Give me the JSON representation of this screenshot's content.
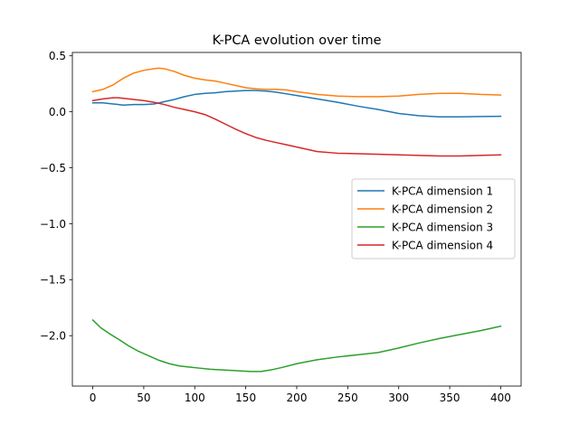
{
  "chart_data": {
    "type": "line",
    "title": "K-PCA evolution over time",
    "xlabel": "",
    "ylabel": "",
    "xlim": [
      -20,
      420
    ],
    "ylim": [
      -2.45,
      0.53
    ],
    "xticks": [
      0,
      50,
      100,
      150,
      200,
      250,
      300,
      350,
      400
    ],
    "yticks": [
      0.5,
      0.0,
      -0.5,
      -1.0,
      -1.5,
      -2.0
    ],
    "ytick_labels": [
      "0.5",
      "0.0",
      "−0.5",
      "−1.0",
      "−1.5",
      "−2.0"
    ],
    "grid": false,
    "legend_position": "center-right",
    "series": [
      {
        "name": "K-PCA dimension 1",
        "color": "#1f77b4",
        "x": [
          0,
          10,
          20,
          30,
          40,
          50,
          60,
          70,
          80,
          90,
          100,
          110,
          120,
          130,
          140,
          150,
          160,
          170,
          180,
          190,
          200,
          220,
          240,
          260,
          280,
          300,
          320,
          340,
          360,
          380,
          400
        ],
        "y": [
          0.08,
          0.08,
          0.07,
          0.06,
          0.065,
          0.065,
          0.07,
          0.09,
          0.11,
          0.135,
          0.155,
          0.165,
          0.17,
          0.18,
          0.185,
          0.19,
          0.19,
          0.185,
          0.175,
          0.16,
          0.145,
          0.115,
          0.085,
          0.05,
          0.02,
          -0.015,
          -0.035,
          -0.045,
          -0.045,
          -0.042,
          -0.04
        ]
      },
      {
        "name": "K-PCA dimension 2",
        "color": "#ff7f0e",
        "x": [
          0,
          10,
          20,
          30,
          40,
          50,
          60,
          65,
          70,
          80,
          90,
          100,
          110,
          120,
          130,
          140,
          150,
          160,
          170,
          180,
          190,
          200,
          220,
          240,
          260,
          280,
          300,
          320,
          340,
          360,
          380,
          400
        ],
        "y": [
          0.18,
          0.2,
          0.24,
          0.3,
          0.345,
          0.37,
          0.385,
          0.39,
          0.385,
          0.36,
          0.325,
          0.3,
          0.285,
          0.275,
          0.255,
          0.235,
          0.215,
          0.205,
          0.2,
          0.2,
          0.195,
          0.18,
          0.155,
          0.14,
          0.135,
          0.135,
          0.14,
          0.155,
          0.165,
          0.165,
          0.155,
          0.15
        ]
      },
      {
        "name": "K-PCA dimension 3",
        "color": "#2ca02c",
        "x": [
          0,
          8,
          16,
          25,
          35,
          45,
          55,
          65,
          75,
          85,
          95,
          105,
          115,
          125,
          135,
          145,
          155,
          165,
          175,
          185,
          200,
          220,
          240,
          260,
          280,
          300,
          320,
          340,
          360,
          380,
          400
        ],
        "y": [
          -1.86,
          -1.93,
          -1.98,
          -2.03,
          -2.09,
          -2.14,
          -2.18,
          -2.22,
          -2.25,
          -2.27,
          -2.28,
          -2.29,
          -2.3,
          -2.305,
          -2.31,
          -2.315,
          -2.32,
          -2.32,
          -2.305,
          -2.285,
          -2.25,
          -2.215,
          -2.19,
          -2.17,
          -2.15,
          -2.11,
          -2.065,
          -2.025,
          -1.99,
          -1.955,
          -1.915
        ]
      },
      {
        "name": "K-PCA dimension 4",
        "color": "#d62728",
        "x": [
          0,
          10,
          20,
          25,
          30,
          40,
          50,
          60,
          70,
          80,
          90,
          100,
          110,
          120,
          130,
          140,
          150,
          160,
          170,
          180,
          190,
          200,
          220,
          240,
          260,
          280,
          300,
          320,
          340,
          360,
          380,
          400
        ],
        "y": [
          0.1,
          0.115,
          0.125,
          0.125,
          0.12,
          0.11,
          0.1,
          0.085,
          0.065,
          0.04,
          0.02,
          0.0,
          -0.025,
          -0.065,
          -0.11,
          -0.155,
          -0.195,
          -0.23,
          -0.255,
          -0.275,
          -0.295,
          -0.315,
          -0.355,
          -0.37,
          -0.375,
          -0.38,
          -0.385,
          -0.39,
          -0.395,
          -0.395,
          -0.39,
          -0.385
        ]
      }
    ]
  }
}
